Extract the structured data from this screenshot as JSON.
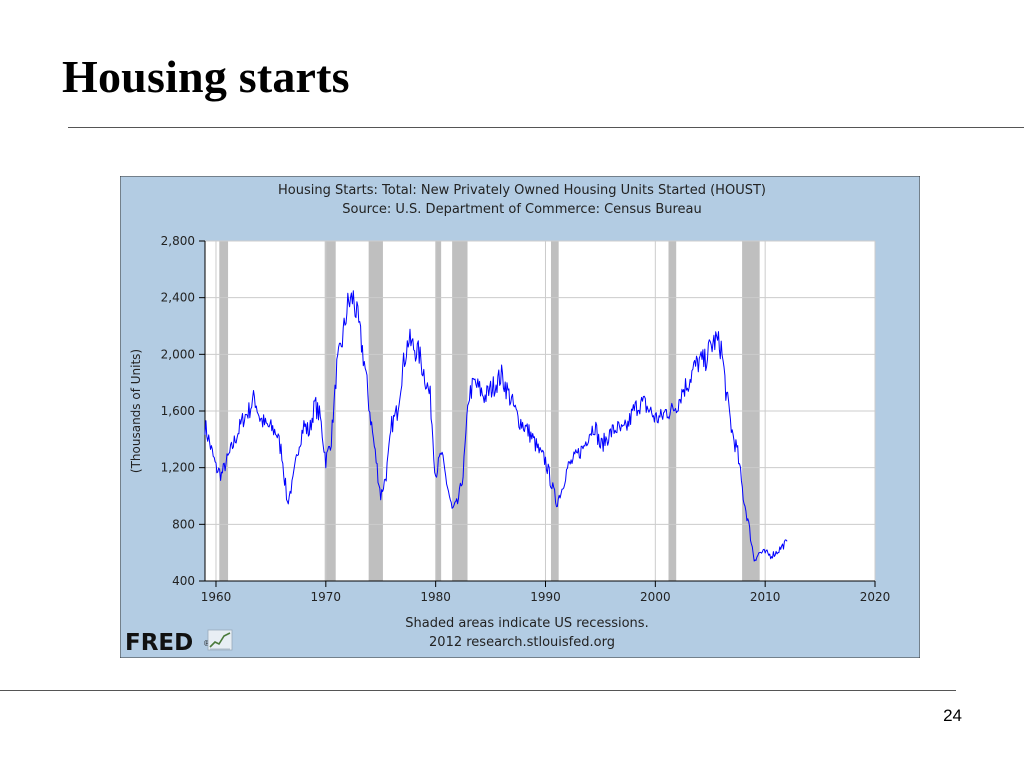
{
  "slide": {
    "title": "Housing starts",
    "page_number": "24"
  },
  "branding": {
    "logo_text": "FRED",
    "logo_trademark": "®"
  },
  "colors": {
    "panel_background": "#b3cce3",
    "plot_background": "#ffffff",
    "series_line": "#0000ff",
    "recession_shade": "#bfbfbf",
    "grid": "#cccccc"
  },
  "chart_data": {
    "type": "line",
    "title": "Housing Starts: Total: New Privately Owned Housing Units Started (HOUST)",
    "subtitle": "Source: U.S. Department of Commerce: Census Bureau",
    "xlabel": "",
    "ylabel": "(Thousands of Units)",
    "xlim": [
      1959,
      2020
    ],
    "ylim": [
      400,
      2800
    ],
    "x_ticks": [
      "1960",
      "1970",
      "1980",
      "1990",
      "2000",
      "2010",
      "2020"
    ],
    "y_ticks": [
      "2,800",
      "2,400",
      "2,000",
      "1,600",
      "1,200",
      "800",
      "400"
    ],
    "grid": true,
    "notes": [
      "Shaded areas indicate US recessions.",
      "2012 research.stlouisfed.org"
    ],
    "recessions": [
      [
        1960.3,
        1961.1
      ],
      [
        1969.9,
        1970.9
      ],
      [
        1973.9,
        1975.2
      ],
      [
        1980.0,
        1980.5
      ],
      [
        1981.5,
        1982.9
      ],
      [
        1990.5,
        1991.2
      ],
      [
        2001.2,
        2001.9
      ],
      [
        2007.9,
        2009.5
      ]
    ],
    "series": [
      {
        "name": "HOUST",
        "x": [
          1959.0,
          1959.5,
          1960.0,
          1960.5,
          1961.0,
          1961.5,
          1962.0,
          1962.5,
          1963.0,
          1963.5,
          1964.0,
          1964.5,
          1965.0,
          1965.5,
          1966.0,
          1966.5,
          1967.0,
          1967.5,
          1968.0,
          1968.5,
          1969.0,
          1969.5,
          1970.0,
          1970.5,
          1971.0,
          1971.5,
          1972.0,
          1972.5,
          1973.0,
          1973.5,
          1974.0,
          1974.5,
          1975.0,
          1975.5,
          1976.0,
          1976.5,
          1977.0,
          1977.5,
          1978.0,
          1978.5,
          1979.0,
          1979.5,
          1980.0,
          1980.5,
          1981.0,
          1981.5,
          1982.0,
          1982.5,
          1983.0,
          1983.5,
          1984.0,
          1984.5,
          1985.0,
          1985.5,
          1986.0,
          1986.5,
          1987.0,
          1987.5,
          1988.0,
          1988.5,
          1989.0,
          1989.5,
          1990.0,
          1990.5,
          1991.0,
          1991.5,
          1992.0,
          1992.5,
          1993.0,
          1993.5,
          1994.0,
          1994.5,
          1995.0,
          1995.5,
          1996.0,
          1996.5,
          1997.0,
          1997.5,
          1998.0,
          1998.5,
          1999.0,
          1999.5,
          2000.0,
          2000.5,
          2001.0,
          2001.5,
          2002.0,
          2002.5,
          2003.0,
          2003.5,
          2004.0,
          2004.5,
          2005.0,
          2005.5,
          2006.0,
          2006.5,
          2007.0,
          2007.5,
          2008.0,
          2008.5,
          2009.0,
          2009.5,
          2010.0,
          2010.5,
          2011.0,
          2011.5,
          2012.0
        ],
        "values": [
          1500,
          1350,
          1200,
          1150,
          1250,
          1350,
          1450,
          1550,
          1600,
          1700,
          1550,
          1500,
          1480,
          1450,
          1300,
          950,
          1100,
          1350,
          1500,
          1450,
          1650,
          1550,
          1250,
          1400,
          1900,
          2100,
          2350,
          2400,
          2200,
          1950,
          1600,
          1300,
          1000,
          1150,
          1500,
          1600,
          1900,
          2100,
          2050,
          2000,
          1850,
          1700,
          1150,
          1300,
          1100,
          900,
          950,
          1150,
          1700,
          1800,
          1750,
          1700,
          1750,
          1800,
          1850,
          1750,
          1650,
          1550,
          1500,
          1450,
          1380,
          1300,
          1250,
          1100,
          950,
          1050,
          1200,
          1250,
          1300,
          1350,
          1450,
          1500,
          1350,
          1400,
          1450,
          1480,
          1450,
          1500,
          1600,
          1650,
          1650,
          1600,
          1550,
          1550,
          1600,
          1600,
          1650,
          1750,
          1800,
          1900,
          1950,
          1950,
          2050,
          2100,
          2050,
          1700,
          1450,
          1300,
          1000,
          800,
          550,
          600,
          600,
          580,
          600,
          640,
          680
        ]
      }
    ]
  }
}
